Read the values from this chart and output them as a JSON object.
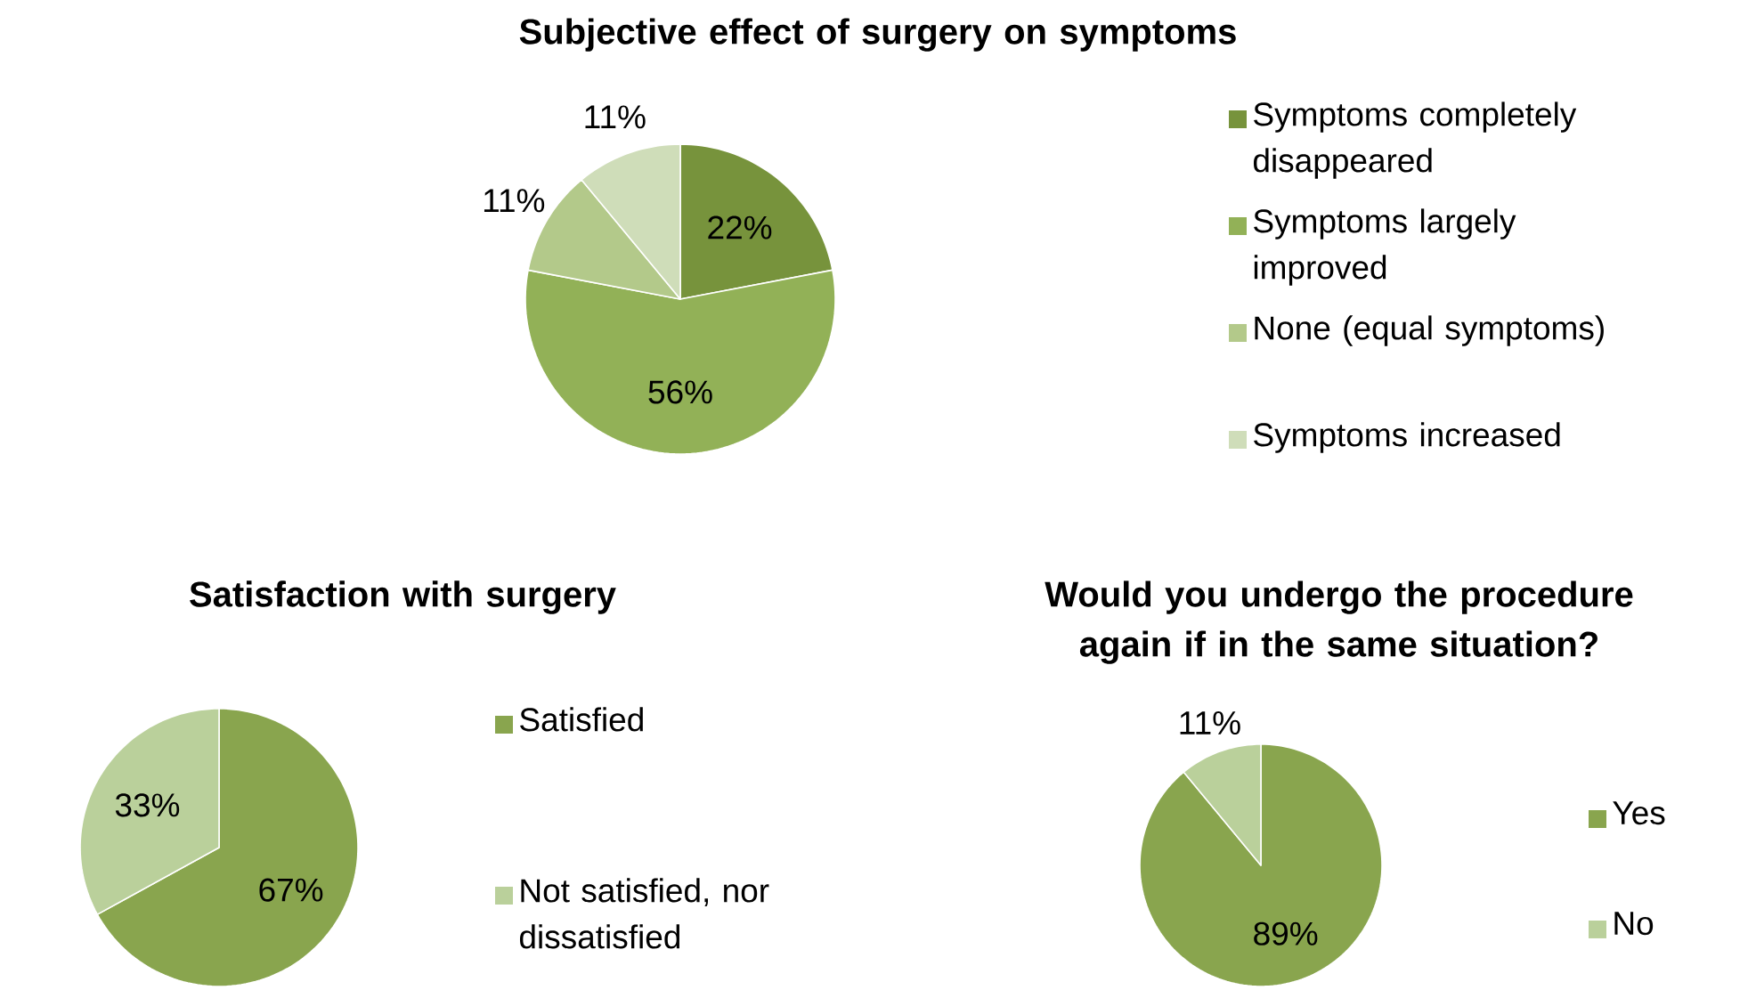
{
  "chart_data": [
    {
      "type": "pie",
      "title": "Subjective effect of surgery on symptoms",
      "categories": [
        "Symptoms completely disappeared",
        "Symptoms largely improved",
        "None (equal symptoms)",
        "Symptoms increased"
      ],
      "values": [
        22,
        56,
        11,
        11
      ],
      "value_labels": [
        "22%",
        "56%",
        "11%",
        "11%"
      ],
      "colors": [
        "#77933c",
        "#92b157",
        "#b3c98a",
        "#cfddb9"
      ],
      "legend": "right"
    },
    {
      "type": "pie",
      "title": "Satisfaction with surgery",
      "categories": [
        "Satisfied",
        "Not satisfied, nor dissatisfied"
      ],
      "values": [
        67,
        33
      ],
      "value_labels": [
        "67%",
        "33%"
      ],
      "colors": [
        "#89a54e",
        "#bad09b"
      ],
      "legend": "right"
    },
    {
      "type": "pie",
      "title": "Would you undergo the procedure again if in the same situation?",
      "categories": [
        "Yes",
        "No"
      ],
      "values": [
        89,
        11
      ],
      "value_labels": [
        "89%",
        "11%"
      ],
      "colors": [
        "#89a54e",
        "#bad09b"
      ],
      "legend": "right"
    }
  ]
}
